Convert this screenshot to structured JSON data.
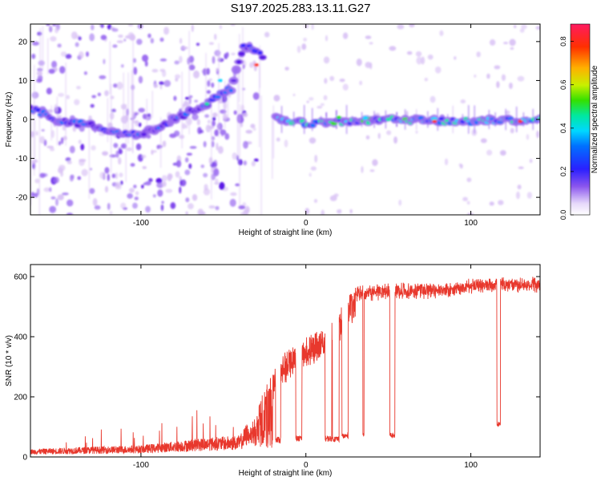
{
  "title": "S197.2025.283.13.11.G27",
  "colors": {
    "snr_line": "#e8382d",
    "colormap": [
      "#ffffff",
      "#d9c2f5",
      "#9b6cf0",
      "#5a12e6",
      "#2a20ff",
      "#0070ff",
      "#00d8ff",
      "#00e8a0",
      "#34e000",
      "#c8f000",
      "#ffb000",
      "#ff3000",
      "#ff1a60"
    ]
  },
  "chart_data": [
    {
      "type": "heatmap",
      "xlabel": "Height of straight line (km)",
      "ylabel": "Frequency (Hz)",
      "xlim": [
        -167,
        142
      ],
      "ylim": [
        -24.5,
        24.5
      ],
      "xticks": [
        -100,
        0,
        100
      ],
      "xtick_labels": [
        "-100",
        "0",
        "100"
      ],
      "yticks": [
        -20,
        -10,
        0,
        10,
        20
      ],
      "ytick_labels": [
        "-20",
        "-10",
        "0",
        "10",
        "20"
      ],
      "colorbar": {
        "label": "Normalized spectral amplitude",
        "range": [
          0.0,
          0.88
        ],
        "ticks": [
          0.0,
          0.2,
          0.4,
          0.6,
          0.8
        ],
        "tick_labels": [
          "0.0",
          "0.2",
          "0.4",
          "0.6",
          "0.8"
        ]
      },
      "ridge": [
        {
          "x": -167,
          "y": 3
        },
        {
          "x": -150,
          "y": -0.5
        },
        {
          "x": -130,
          "y": -1.5
        },
        {
          "x": -110,
          "y": -4
        },
        {
          "x": -100,
          "y": -3.5
        },
        {
          "x": -90,
          "y": -2
        },
        {
          "x": -80,
          "y": 0
        },
        {
          "x": -70,
          "y": 2
        },
        {
          "x": -60,
          "y": 4
        },
        {
          "x": -50,
          "y": 7
        },
        {
          "x": -45,
          "y": 8
        },
        {
          "x": -38,
          "y": 19
        },
        {
          "x": -30,
          "y": 18
        },
        {
          "x": -22,
          "y": 14
        },
        {
          "x": -18,
          "y": 0
        },
        {
          "x": 0,
          "y": -1
        },
        {
          "x": 50,
          "y": 0
        },
        {
          "x": 100,
          "y": -0.5
        },
        {
          "x": 142,
          "y": 0
        }
      ]
    },
    {
      "type": "line",
      "xlabel": "Height of straight line (km)",
      "ylabel": "SNR (10 * v/v)",
      "xlim": [
        -167,
        142
      ],
      "ylim": [
        0,
        640
      ],
      "xticks": [
        -100,
        0,
        100
      ],
      "xtick_labels": [
        "-100",
        "0",
        "100"
      ],
      "yticks": [
        0,
        200,
        400,
        600
      ],
      "ytick_labels": [
        "0",
        "200",
        "400",
        "600"
      ],
      "series": [
        {
          "points": [
            {
              "x": -167,
              "y": 20
            },
            {
              "x": -140,
              "y": 25
            },
            {
              "x": -100,
              "y": 30
            },
            {
              "x": -80,
              "y": 40
            },
            {
              "x": -60,
              "y": 50
            },
            {
              "x": -40,
              "y": 55
            },
            {
              "x": -30,
              "y": 130
            },
            {
              "x": -25,
              "y": 230
            },
            {
              "x": -20,
              "y": 280
            },
            {
              "x": -10,
              "y": 360
            },
            {
              "x": 0,
              "y": 390
            },
            {
              "x": 10,
              "y": 420
            },
            {
              "x": 20,
              "y": 480
            },
            {
              "x": 30,
              "y": 560
            },
            {
              "x": 50,
              "y": 570
            },
            {
              "x": 80,
              "y": 570
            },
            {
              "x": 110,
              "y": 590
            },
            {
              "x": 142,
              "y": 590
            }
          ]
        }
      ]
    }
  ]
}
